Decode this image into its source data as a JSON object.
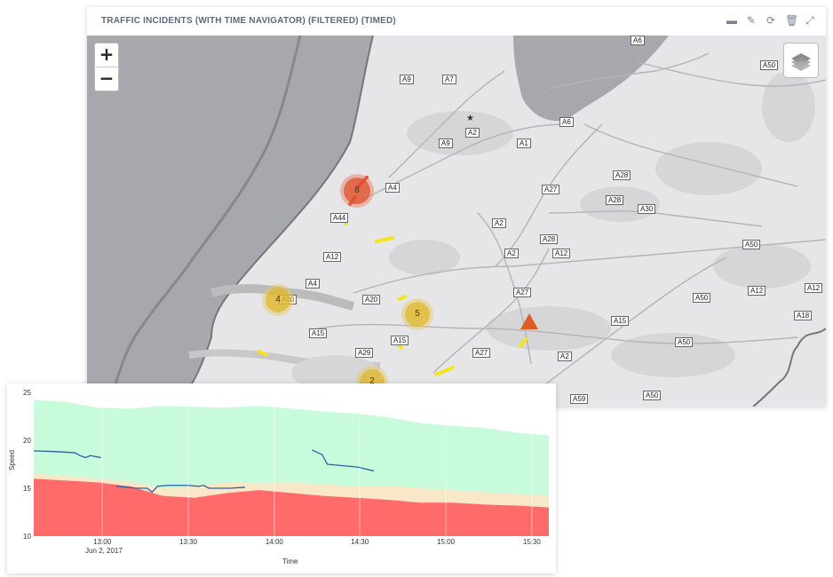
{
  "panel": {
    "title": "TRAFFIC INCIDENTS (WITH TIME NAVIGATOR) (FILTERED) (TIMED)",
    "icons": [
      "minimize-icon",
      "edit-icon",
      "refresh-icon",
      "trash-icon",
      "expand-icon"
    ]
  },
  "map": {
    "zoom_in_label": "+",
    "zoom_out_label": "−",
    "road_labels": [
      "A6",
      "A9",
      "A7",
      "A50",
      "A6",
      "A2",
      "A1",
      "A9",
      "A4",
      "A27",
      "A28",
      "A28",
      "A44",
      "A30",
      "A2",
      "A28",
      "A12",
      "A2",
      "A12",
      "A50",
      "A4",
      "A20",
      "A12",
      "A27",
      "A20",
      "A50",
      "A12",
      "A15",
      "A15",
      "A15",
      "A18",
      "A29",
      "A50",
      "A27",
      "A2",
      "A50",
      "A27",
      "A59"
    ],
    "clusters": [
      "8",
      "4",
      "5",
      "2"
    ],
    "colors": {
      "water": "#a6a8ad",
      "land": "#e6e6e8",
      "incident_red": "#e0482e",
      "incident_yellow": "#f5e51a",
      "cluster_fill": "#e0b830",
      "triangle": "#e05a24"
    }
  },
  "chart_data": {
    "type": "area",
    "title": "",
    "xlabel": "Time",
    "ylabel": "Speed",
    "ylim": [
      10,
      25
    ],
    "y_ticks": [
      "25",
      "20",
      "15",
      "10"
    ],
    "x_ticks": [
      "13:00",
      "13:30",
      "14:00",
      "14:30",
      "15:00",
      "15:30"
    ],
    "x_subtitle": "Jun 2, 2017",
    "bands": [
      {
        "name": "red",
        "color": "#ff6b6b",
        "top": [
          16.0,
          15.8,
          15.6,
          15.2,
          14.2,
          14.0,
          14.5,
          14.8,
          14.5,
          14.2,
          14.0,
          13.8,
          13.5,
          13.5,
          13.3,
          13.2,
          13.0
        ]
      },
      {
        "name": "beige",
        "color": "#f8e8c8",
        "top": [
          16.5,
          16.3,
          16.0,
          15.7,
          15.0,
          15.2,
          15.6,
          15.5,
          15.6,
          15.4,
          15.2,
          15.3,
          15.0,
          14.8,
          14.6,
          14.4,
          14.2
        ]
      },
      {
        "name": "green",
        "color": "#c8fadc",
        "top": [
          24.2,
          24.0,
          23.4,
          23.3,
          23.6,
          23.5,
          23.4,
          23.6,
          23.3,
          23.0,
          22.8,
          22.4,
          21.8,
          21.5,
          21.3,
          20.8,
          20.5
        ]
      }
    ],
    "band_x": [
      0,
      0.0625,
      0.125,
      0.1875,
      0.25,
      0.3125,
      0.375,
      0.4375,
      0.5,
      0.5625,
      0.625,
      0.6875,
      0.75,
      0.8125,
      0.875,
      0.9375,
      1.0
    ],
    "speed_series": [
      {
        "name": "",
        "points": [
          [
            0.0,
            18.9
          ],
          [
            0.05,
            18.8
          ],
          [
            0.08,
            18.7
          ],
          [
            0.09,
            18.4
          ],
          [
            0.1,
            18.2
          ],
          [
            0.11,
            18.4
          ],
          [
            0.13,
            18.2
          ]
        ]
      },
      {
        "name": "",
        "points": [
          [
            0.16,
            15.2
          ],
          [
            0.2,
            15.0
          ],
          [
            0.22,
            15.0
          ],
          [
            0.23,
            14.6
          ],
          [
            0.24,
            15.2
          ],
          [
            0.26,
            15.3
          ],
          [
            0.3,
            15.3
          ],
          [
            0.32,
            15.2
          ],
          [
            0.33,
            15.3
          ],
          [
            0.34,
            15.0
          ],
          [
            0.38,
            15.0
          ],
          [
            0.41,
            15.1
          ]
        ]
      },
      {
        "name": "",
        "points": [
          [
            0.54,
            19.0
          ],
          [
            0.56,
            18.5
          ],
          [
            0.57,
            17.5
          ],
          [
            0.63,
            17.2
          ],
          [
            0.66,
            16.8
          ]
        ]
      }
    ],
    "line_color": "#2a5fa8"
  }
}
